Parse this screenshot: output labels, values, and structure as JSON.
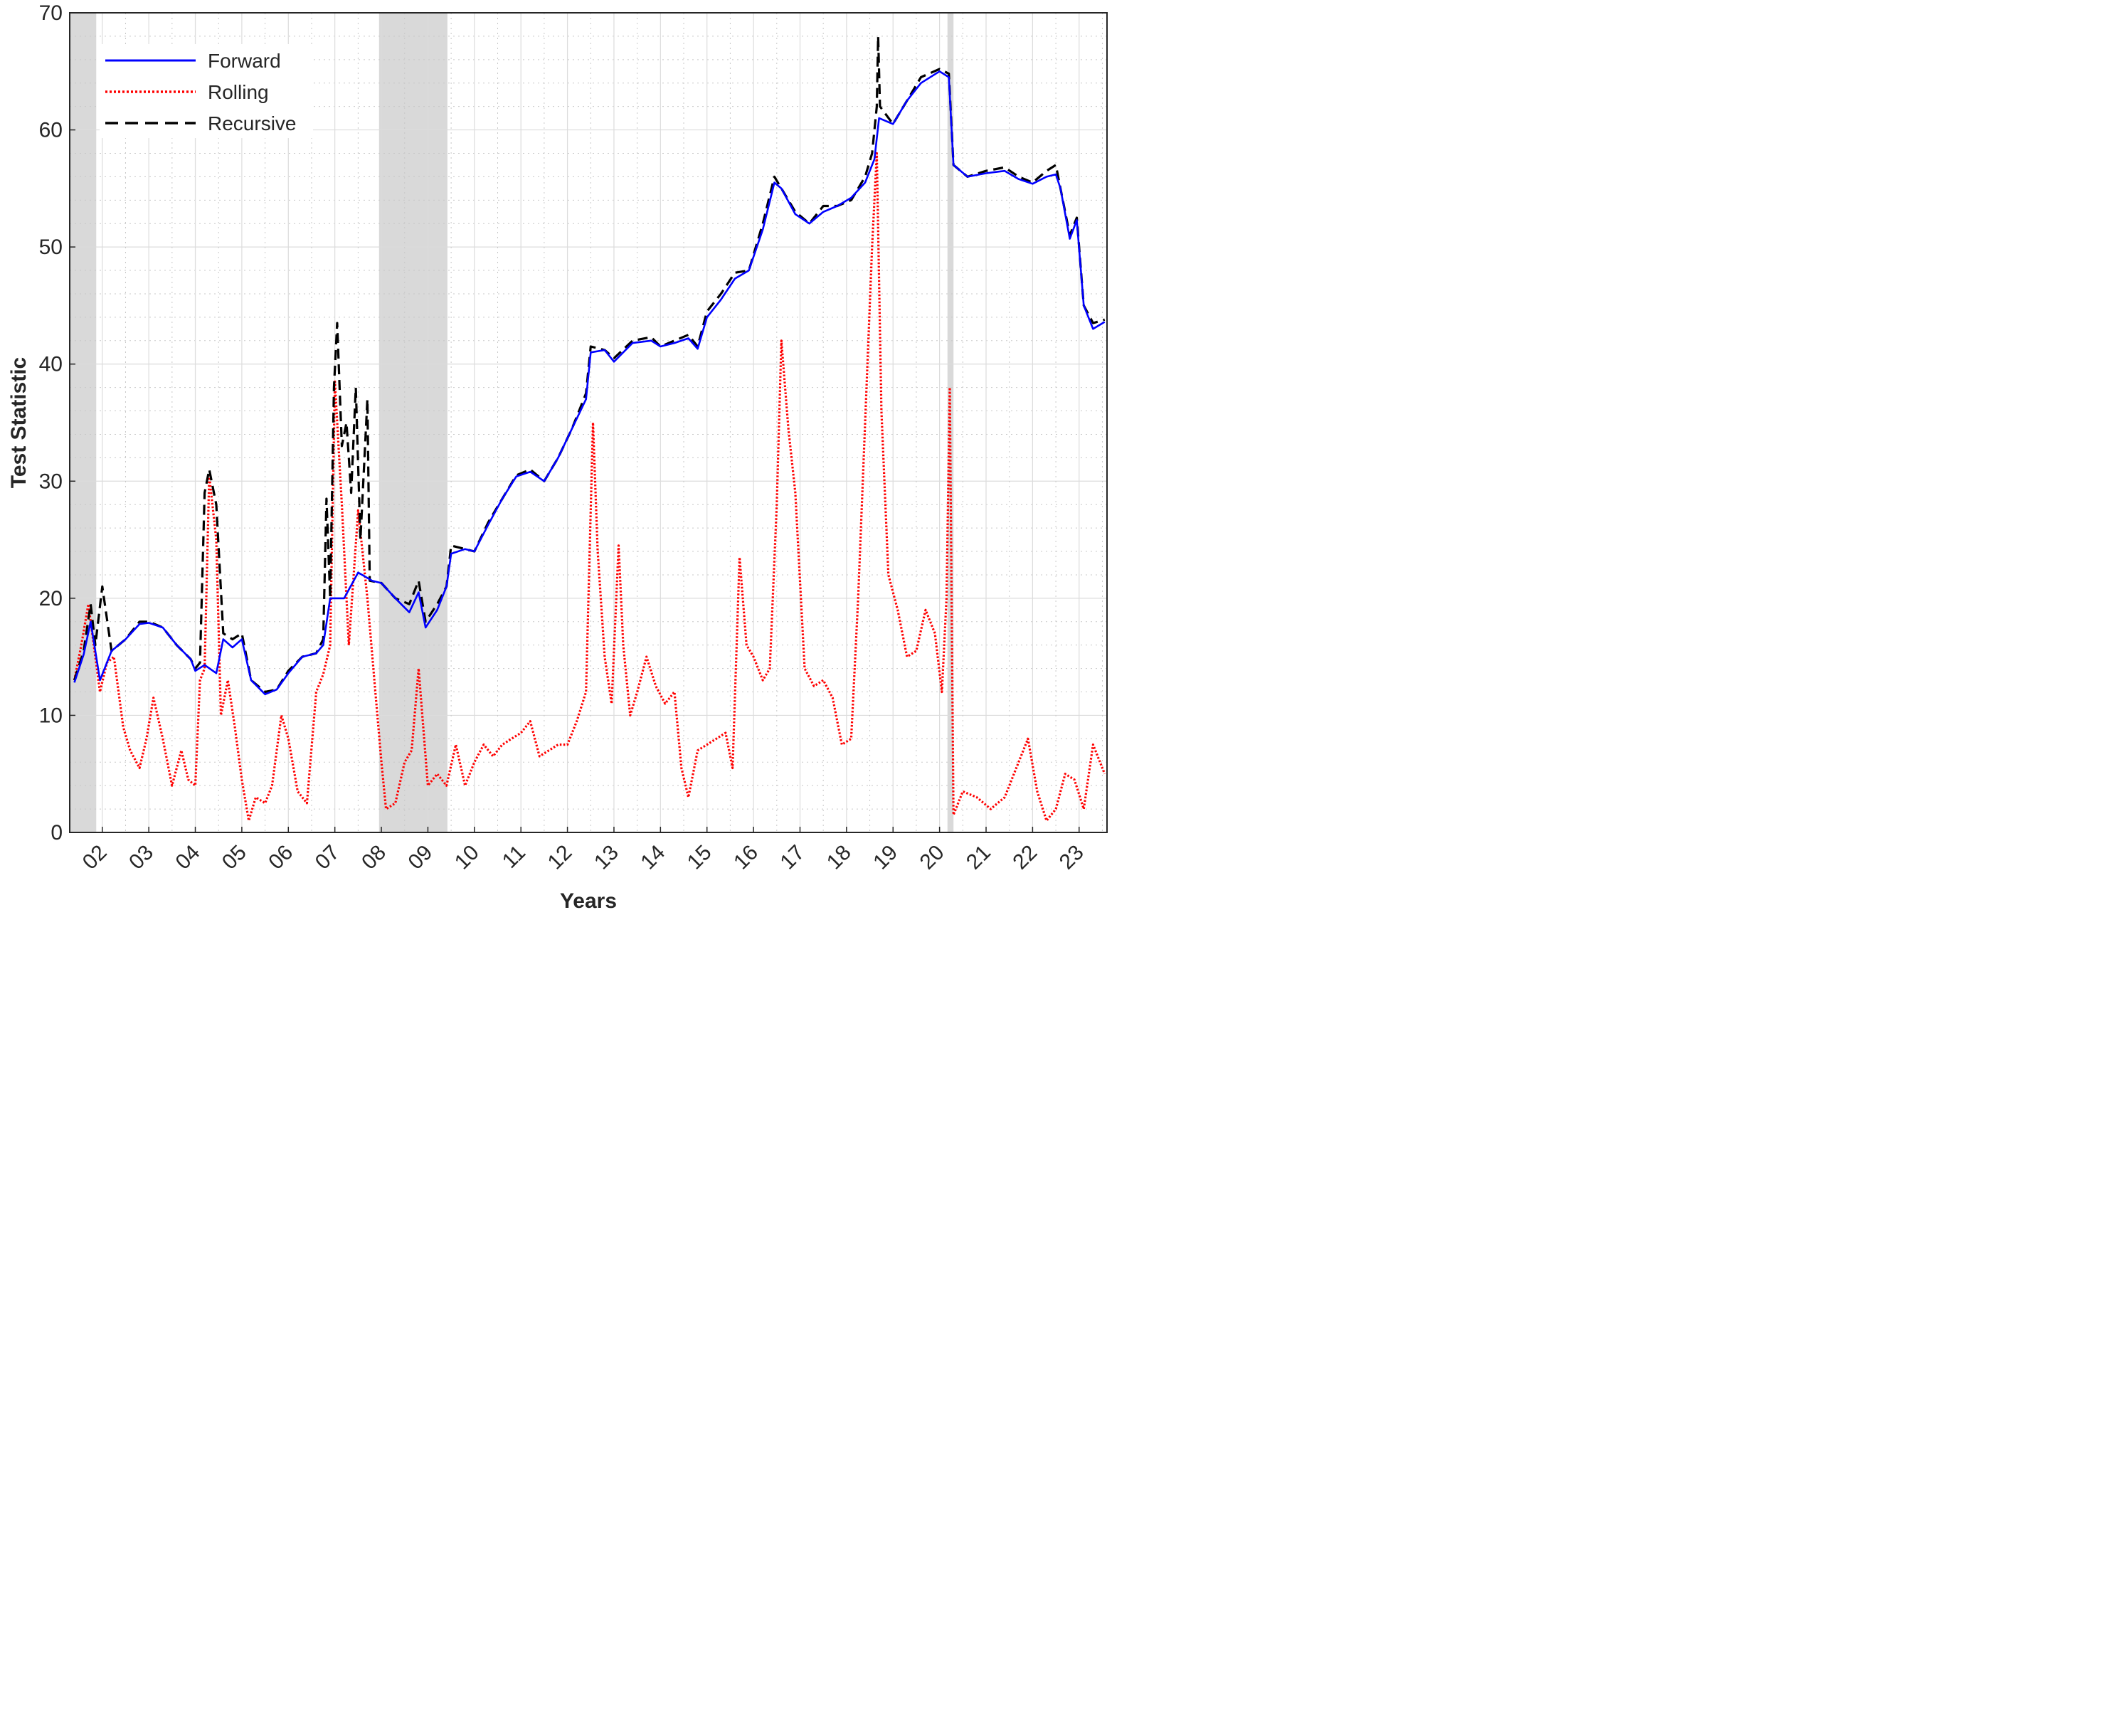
{
  "chart_data": {
    "type": "line",
    "title": "",
    "xlabel": "Years",
    "ylabel": "Test Statistic",
    "xlim": [
      2001.3,
      2023.6
    ],
    "ylim": [
      0,
      70
    ],
    "yticks": [
      0,
      10,
      20,
      30,
      40,
      50,
      60,
      70
    ],
    "xticks": [
      {
        "value": 2002,
        "label": "02"
      },
      {
        "value": 2003,
        "label": "03"
      },
      {
        "value": 2004,
        "label": "04"
      },
      {
        "value": 2005,
        "label": "05"
      },
      {
        "value": 2006,
        "label": "06"
      },
      {
        "value": 2007,
        "label": "07"
      },
      {
        "value": 2008,
        "label": "08"
      },
      {
        "value": 2009,
        "label": "09"
      },
      {
        "value": 2010,
        "label": "10"
      },
      {
        "value": 2011,
        "label": "11"
      },
      {
        "value": 2012,
        "label": "12"
      },
      {
        "value": 2013,
        "label": "13"
      },
      {
        "value": 2014,
        "label": "14"
      },
      {
        "value": 2015,
        "label": "15"
      },
      {
        "value": 2016,
        "label": "16"
      },
      {
        "value": 2017,
        "label": "17"
      },
      {
        "value": 2018,
        "label": "18"
      },
      {
        "value": 2019,
        "label": "19"
      },
      {
        "value": 2020,
        "label": "20"
      },
      {
        "value": 2021,
        "label": "21"
      },
      {
        "value": 2022,
        "label": "22"
      },
      {
        "value": 2023,
        "label": "23"
      }
    ],
    "grid": true,
    "minor_grid": true,
    "legend_position": "top-left",
    "shaded_periods": [
      {
        "start": 2001.3,
        "end": 2001.87
      },
      {
        "start": 2007.95,
        "end": 2009.42
      },
      {
        "start": 2020.17,
        "end": 2020.3
      }
    ],
    "series": [
      {
        "name": "Forward",
        "color": "#0000ff",
        "style": "solid",
        "x": [
          2001.4,
          2001.6,
          2001.75,
          2001.95,
          2002.2,
          2002.5,
          2002.8,
          2003.0,
          2003.3,
          2003.6,
          2003.9,
          2004.0,
          2004.2,
          2004.45,
          2004.6,
          2004.8,
          2005.0,
          2005.2,
          2005.5,
          2005.75,
          2006.0,
          2006.3,
          2006.6,
          2006.75,
          2006.9,
          2007.2,
          2007.5,
          2007.8,
          2008.0,
          2008.3,
          2008.6,
          2008.8,
          2008.95,
          2009.2,
          2009.4,
          2009.5,
          2009.8,
          2010.0,
          2010.3,
          2010.6,
          2010.9,
          2011.2,
          2011.5,
          2011.8,
          2012.1,
          2012.4,
          2012.5,
          2012.8,
          2013.0,
          2013.4,
          2013.8,
          2014.0,
          2014.3,
          2014.6,
          2014.8,
          2015.0,
          2015.3,
          2015.6,
          2015.9,
          2016.2,
          2016.45,
          2016.6,
          2016.9,
          2017.2,
          2017.5,
          2017.8,
          2018.1,
          2018.4,
          2018.6,
          2018.7,
          2019.0,
          2019.3,
          2019.6,
          2020.0,
          2020.2,
          2020.3,
          2020.6,
          2021.0,
          2021.4,
          2021.7,
          2022.0,
          2022.3,
          2022.5,
          2022.6,
          2022.8,
          2022.95,
          2023.1,
          2023.3,
          2023.55
        ],
        "y": [
          12.8,
          15.2,
          18.0,
          13.0,
          15.5,
          16.5,
          17.8,
          17.9,
          17.5,
          16.0,
          14.8,
          13.8,
          14.3,
          13.6,
          16.5,
          15.8,
          16.5,
          13.0,
          11.8,
          12.2,
          13.6,
          15.0,
          15.3,
          16.0,
          20.0,
          20.0,
          22.2,
          21.5,
          21.3,
          20.0,
          18.8,
          20.5,
          17.5,
          19.0,
          21.0,
          23.8,
          24.2,
          24.0,
          26.3,
          28.5,
          30.4,
          30.8,
          30.0,
          32.0,
          34.5,
          37.0,
          41.0,
          41.2,
          40.2,
          41.8,
          42.0,
          41.5,
          41.8,
          42.2,
          41.3,
          44.0,
          45.5,
          47.3,
          48.0,
          51.5,
          55.5,
          55.0,
          52.8,
          52.0,
          53.0,
          53.5,
          54.2,
          55.5,
          57.5,
          61.0,
          60.5,
          62.5,
          64.0,
          65.0,
          64.5,
          57.0,
          56.0,
          56.3,
          56.5,
          55.8,
          55.4,
          56.0,
          56.2,
          55.0,
          50.7,
          52.3,
          45.0,
          43.0,
          43.6
        ]
      },
      {
        "name": "Rolling",
        "color": "#ff0000",
        "style": "dotted",
        "x": [
          2001.4,
          2001.55,
          2001.7,
          2001.85,
          2001.95,
          2002.1,
          2002.25,
          2002.45,
          2002.6,
          2002.8,
          2002.95,
          2003.1,
          2003.3,
          2003.5,
          2003.7,
          2003.85,
          2004.0,
          2004.1,
          2004.2,
          2004.3,
          2004.45,
          2004.55,
          2004.7,
          2004.85,
          2005.0,
          2005.15,
          2005.3,
          2005.5,
          2005.65,
          2005.85,
          2006.0,
          2006.2,
          2006.4,
          2006.6,
          2006.75,
          2006.9,
          2007.0,
          2007.15,
          2007.3,
          2007.5,
          2007.7,
          2007.85,
          2008.0,
          2008.1,
          2008.3,
          2008.5,
          2008.65,
          2008.8,
          2009.0,
          2009.2,
          2009.4,
          2009.6,
          2009.8,
          2010.0,
          2010.2,
          2010.4,
          2010.6,
          2010.8,
          2011.0,
          2011.2,
          2011.4,
          2011.6,
          2011.8,
          2012.0,
          2012.2,
          2012.4,
          2012.55,
          2012.65,
          2012.8,
          2012.95,
          2013.1,
          2013.2,
          2013.35,
          2013.5,
          2013.7,
          2013.9,
          2014.1,
          2014.3,
          2014.45,
          2014.6,
          2014.8,
          2015.0,
          2015.2,
          2015.4,
          2015.55,
          2015.7,
          2015.85,
          2016.0,
          2016.2,
          2016.35,
          2016.5,
          2016.6,
          2016.75,
          2016.9,
          2017.1,
          2017.3,
          2017.5,
          2017.7,
          2017.9,
          2018.1,
          2018.25,
          2018.4,
          2018.55,
          2018.65,
          2018.75,
          2018.9,
          2019.1,
          2019.3,
          2019.5,
          2019.7,
          2019.9,
          2020.05,
          2020.15,
          2020.22,
          2020.3,
          2020.5,
          2020.8,
          2021.1,
          2021.4,
          2021.6,
          2021.9,
          2022.1,
          2022.3,
          2022.5,
          2022.7,
          2022.9,
          2023.1,
          2023.3,
          2023.55
        ],
        "y": [
          13.0,
          16.0,
          19.5,
          15.0,
          12.0,
          14.5,
          15.0,
          9.0,
          7.0,
          5.5,
          8.0,
          11.5,
          8.0,
          4.0,
          7.0,
          4.5,
          4.0,
          13.0,
          14.0,
          30.5,
          25.0,
          10.0,
          13.0,
          9.0,
          4.5,
          1.0,
          3.0,
          2.5,
          4.0,
          10.0,
          8.0,
          3.5,
          2.5,
          12.0,
          13.5,
          16.0,
          38.5,
          28.0,
          16.0,
          27.5,
          20.0,
          13.0,
          6.0,
          2.0,
          2.5,
          6.0,
          7.0,
          14.0,
          4.0,
          5.0,
          4.0,
          7.5,
          4.0,
          6.0,
          7.5,
          6.5,
          7.5,
          8.0,
          8.5,
          9.5,
          6.5,
          7.0,
          7.5,
          7.5,
          9.5,
          12.0,
          35.0,
          24.0,
          15.0,
          11.0,
          24.5,
          16.0,
          10.0,
          12.0,
          15.0,
          12.5,
          11.0,
          12.0,
          5.5,
          3.0,
          7.0,
          7.5,
          8.0,
          8.5,
          5.5,
          23.5,
          16.0,
          15.0,
          13.0,
          14.0,
          28.0,
          42.0,
          34.5,
          29.0,
          14.0,
          12.5,
          13.0,
          11.5,
          7.5,
          8.0,
          20.0,
          35.0,
          50.0,
          58.0,
          36.0,
          22.0,
          19.0,
          15.0,
          15.5,
          19.0,
          17.0,
          12.0,
          20.0,
          38.0,
          1.5,
          3.5,
          3.0,
          2.0,
          3.0,
          5.0,
          8.0,
          3.5,
          1.0,
          2.0,
          5.0,
          4.5,
          2.0,
          7.5,
          5.0
        ]
      },
      {
        "name": "Recursive",
        "color": "#000000",
        "style": "dashed",
        "x": [
          2001.4,
          2001.6,
          2001.75,
          2001.85,
          2002.0,
          2002.2,
          2002.5,
          2002.8,
          2003.0,
          2003.3,
          2003.6,
          2003.9,
          2004.0,
          2004.1,
          2004.2,
          2004.3,
          2004.45,
          2004.6,
          2004.8,
          2005.0,
          2005.2,
          2005.5,
          2005.75,
          2006.0,
          2006.3,
          2006.6,
          2006.75,
          2006.82,
          2006.9,
          2006.98,
          2007.05,
          2007.15,
          2007.25,
          2007.35,
          2007.45,
          2007.55,
          2007.7,
          2007.75,
          2008.0,
          2008.3,
          2008.6,
          2008.8,
          2008.95,
          2009.2,
          2009.4,
          2009.5,
          2009.8,
          2010.0,
          2010.3,
          2010.6,
          2010.9,
          2011.2,
          2011.5,
          2011.8,
          2012.1,
          2012.4,
          2012.5,
          2012.8,
          2013.0,
          2013.4,
          2013.8,
          2014.0,
          2014.3,
          2014.6,
          2014.8,
          2015.0,
          2015.3,
          2015.6,
          2015.9,
          2016.2,
          2016.45,
          2016.6,
          2016.9,
          2017.2,
          2017.5,
          2017.8,
          2018.1,
          2018.4,
          2018.55,
          2018.65,
          2018.68,
          2018.72,
          2019.0,
          2019.3,
          2019.6,
          2020.0,
          2020.2,
          2020.3,
          2020.6,
          2021.0,
          2021.4,
          2021.7,
          2022.0,
          2022.3,
          2022.5,
          2022.6,
          2022.8,
          2022.95,
          2023.1,
          2023.3,
          2023.55
        ],
        "y": [
          13.0,
          15.5,
          19.5,
          16.0,
          21.0,
          15.5,
          16.5,
          18.0,
          18.0,
          17.5,
          16.0,
          14.8,
          14.0,
          14.5,
          29.0,
          31.0,
          28.0,
          17.0,
          16.5,
          17.0,
          13.0,
          12.0,
          12.2,
          13.8,
          15.0,
          15.3,
          16.5,
          28.5,
          20.0,
          38.0,
          43.5,
          33.0,
          35.0,
          29.0,
          38.0,
          25.0,
          37.0,
          21.5,
          21.3,
          20.0,
          19.5,
          21.5,
          18.0,
          19.5,
          21.0,
          24.5,
          24.2,
          24.0,
          26.5,
          28.5,
          30.5,
          31.0,
          30.0,
          32.0,
          34.5,
          37.5,
          41.5,
          41.2,
          40.5,
          42.0,
          42.3,
          41.5,
          42.0,
          42.5,
          41.5,
          44.5,
          46.0,
          47.8,
          48.0,
          52.0,
          56.0,
          55.0,
          53.0,
          52.0,
          53.5,
          53.5,
          54.0,
          56.0,
          58.0,
          62.0,
          68.0,
          62.0,
          60.5,
          62.5,
          64.5,
          65.2,
          64.8,
          57.0,
          56.0,
          56.5,
          56.8,
          56.0,
          55.5,
          56.5,
          57.0,
          55.0,
          51.0,
          52.5,
          45.0,
          43.5,
          43.8
        ]
      }
    ]
  }
}
